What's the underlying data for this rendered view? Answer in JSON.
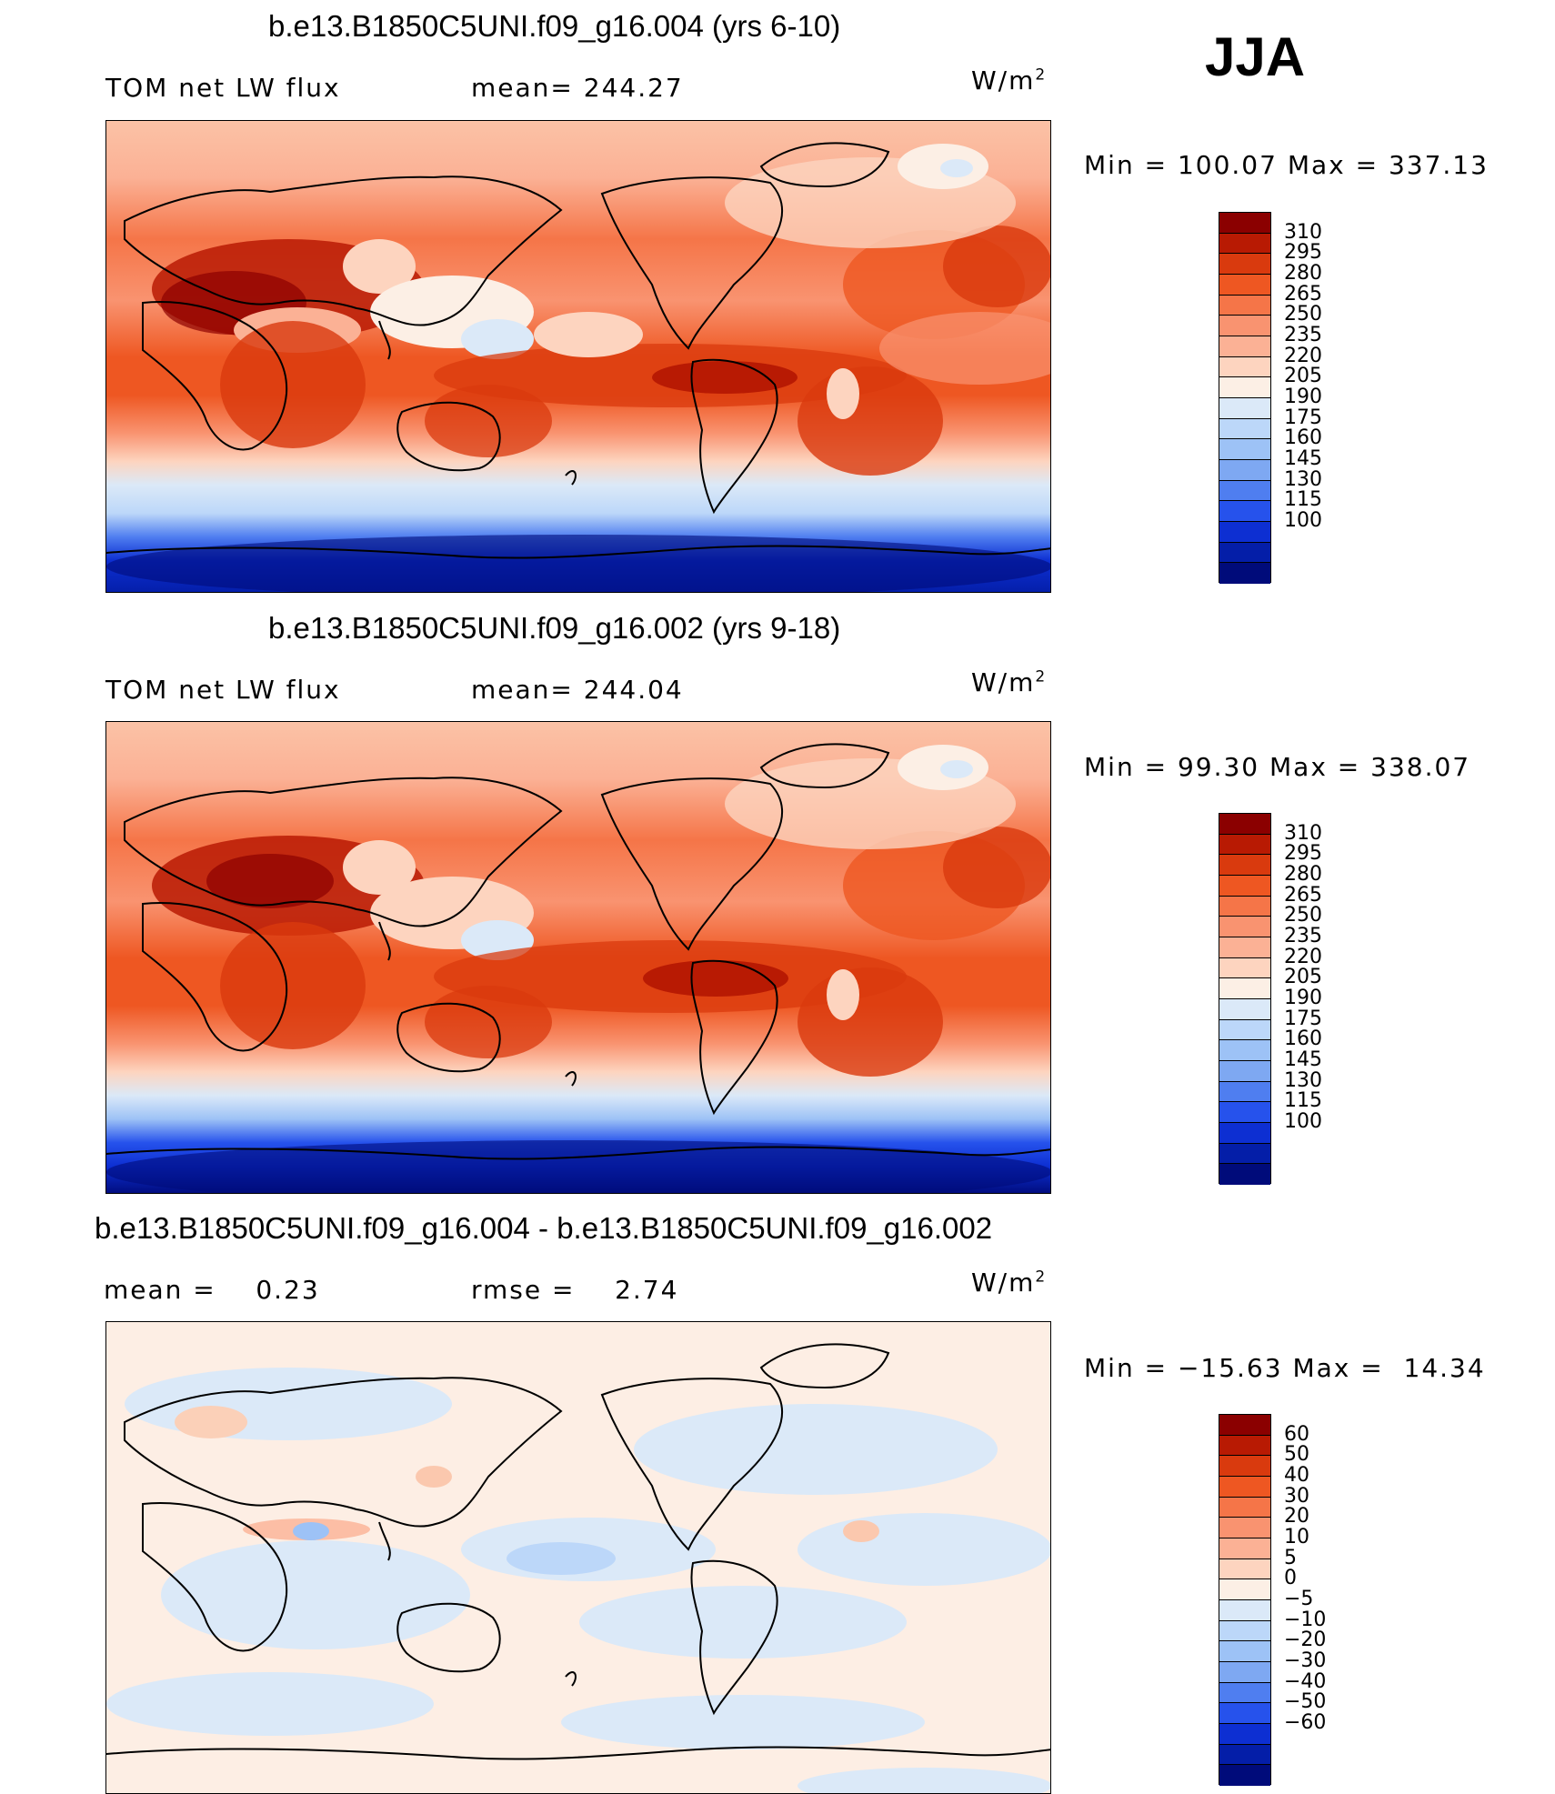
{
  "season": "JJA",
  "panels": [
    {
      "title": "b.e13.B1850C5UNI.f09_g16.004 (yrs 6-10)",
      "left_text": "TOM net LW flux",
      "mid_text": "mean= 244.27",
      "unit": "W/m",
      "unit_sup": "2",
      "minmax": "Min = 100.07 Max = 337.13",
      "colorbar": {
        "labels": [
          "310",
          "295",
          "280",
          "265",
          "250",
          "235",
          "220",
          "205",
          "190",
          "175",
          "160",
          "145",
          "130",
          "115",
          "100"
        ],
        "colors": [
          "#8b0000",
          "#b81a03",
          "#d93a0e",
          "#ee5722",
          "#f57548",
          "#f99370",
          "#fbb195",
          "#fdd4bf",
          "#fcefe5",
          "#dbe9f8",
          "#bcd7f9",
          "#9dc2f6",
          "#7ea8f2",
          "#4f7ef0",
          "#2652ec",
          "#0d2fd2",
          "#041ea8",
          "#000b7a"
        ]
      }
    },
    {
      "title": "b.e13.B1850C5UNI.f09_g16.002 (yrs 9-18)",
      "left_text": "TOM net LW flux",
      "mid_text": "mean= 244.04",
      "unit": "W/m",
      "unit_sup": "2",
      "minmax": "Min =  99.30 Max = 338.07",
      "colorbar": {
        "labels": [
          "310",
          "295",
          "280",
          "265",
          "250",
          "235",
          "220",
          "205",
          "190",
          "175",
          "160",
          "145",
          "130",
          "115",
          "100"
        ],
        "colors": [
          "#8b0000",
          "#b81a03",
          "#d93a0e",
          "#ee5722",
          "#f57548",
          "#f99370",
          "#fbb195",
          "#fdd4bf",
          "#fcefe5",
          "#dbe9f8",
          "#bcd7f9",
          "#9dc2f6",
          "#7ea8f2",
          "#4f7ef0",
          "#2652ec",
          "#0d2fd2",
          "#041ea8",
          "#000b7a"
        ]
      }
    },
    {
      "title": "b.e13.B1850C5UNI.f09_g16.004 - b.e13.B1850C5UNI.f09_g16.002",
      "left_text": "mean =    0.23",
      "mid_text": "rmse =    2.74",
      "unit": "W/m",
      "unit_sup": "2",
      "minmax": "Min = −15.63 Max =  14.34",
      "colorbar": {
        "labels": [
          "60",
          "50",
          "40",
          "30",
          "20",
          "10",
          "5",
          "0",
          "−5",
          "−10",
          "−20",
          "−30",
          "−40",
          "−50",
          "−60"
        ],
        "colors": [
          "#8b0000",
          "#b81a03",
          "#d93a0e",
          "#ee5722",
          "#f57548",
          "#f99370",
          "#fbb195",
          "#fdd4bf",
          "#fcefe5",
          "#dbe9f8",
          "#bcd7f9",
          "#9dc2f6",
          "#7ea8f2",
          "#4f7ef0",
          "#2652ec",
          "#0d2fd2",
          "#041ea8",
          "#000b7a"
        ]
      }
    }
  ],
  "chart_data": [
    {
      "type": "heatmap",
      "title": "b.e13.B1850C5UNI.f09_g16.004 (yrs 6-10)",
      "subtitle": "TOM net LW flux",
      "season": "JJA",
      "units": "W/m2",
      "mean": 244.27,
      "min": 100.07,
      "max": 337.13,
      "contour_levels": [
        100,
        115,
        130,
        145,
        160,
        175,
        190,
        205,
        220,
        235,
        250,
        265,
        280,
        295,
        310
      ]
    },
    {
      "type": "heatmap",
      "title": "b.e13.B1850C5UNI.f09_g16.002 (yrs 9-18)",
      "subtitle": "TOM net LW flux",
      "season": "JJA",
      "units": "W/m2",
      "mean": 244.04,
      "min": 99.3,
      "max": 338.07,
      "contour_levels": [
        100,
        115,
        130,
        145,
        160,
        175,
        190,
        205,
        220,
        235,
        250,
        265,
        280,
        295,
        310
      ]
    },
    {
      "type": "heatmap",
      "title": "b.e13.B1850C5UNI.f09_g16.004 - b.e13.B1850C5UNI.f09_g16.002",
      "season": "JJA",
      "units": "W/m2",
      "mean": 0.23,
      "rmse": 2.74,
      "min": -15.63,
      "max": 14.34,
      "contour_levels": [
        -60,
        -50,
        -40,
        -30,
        -20,
        -10,
        -5,
        0,
        5,
        10,
        20,
        30,
        40,
        50,
        60
      ]
    }
  ]
}
